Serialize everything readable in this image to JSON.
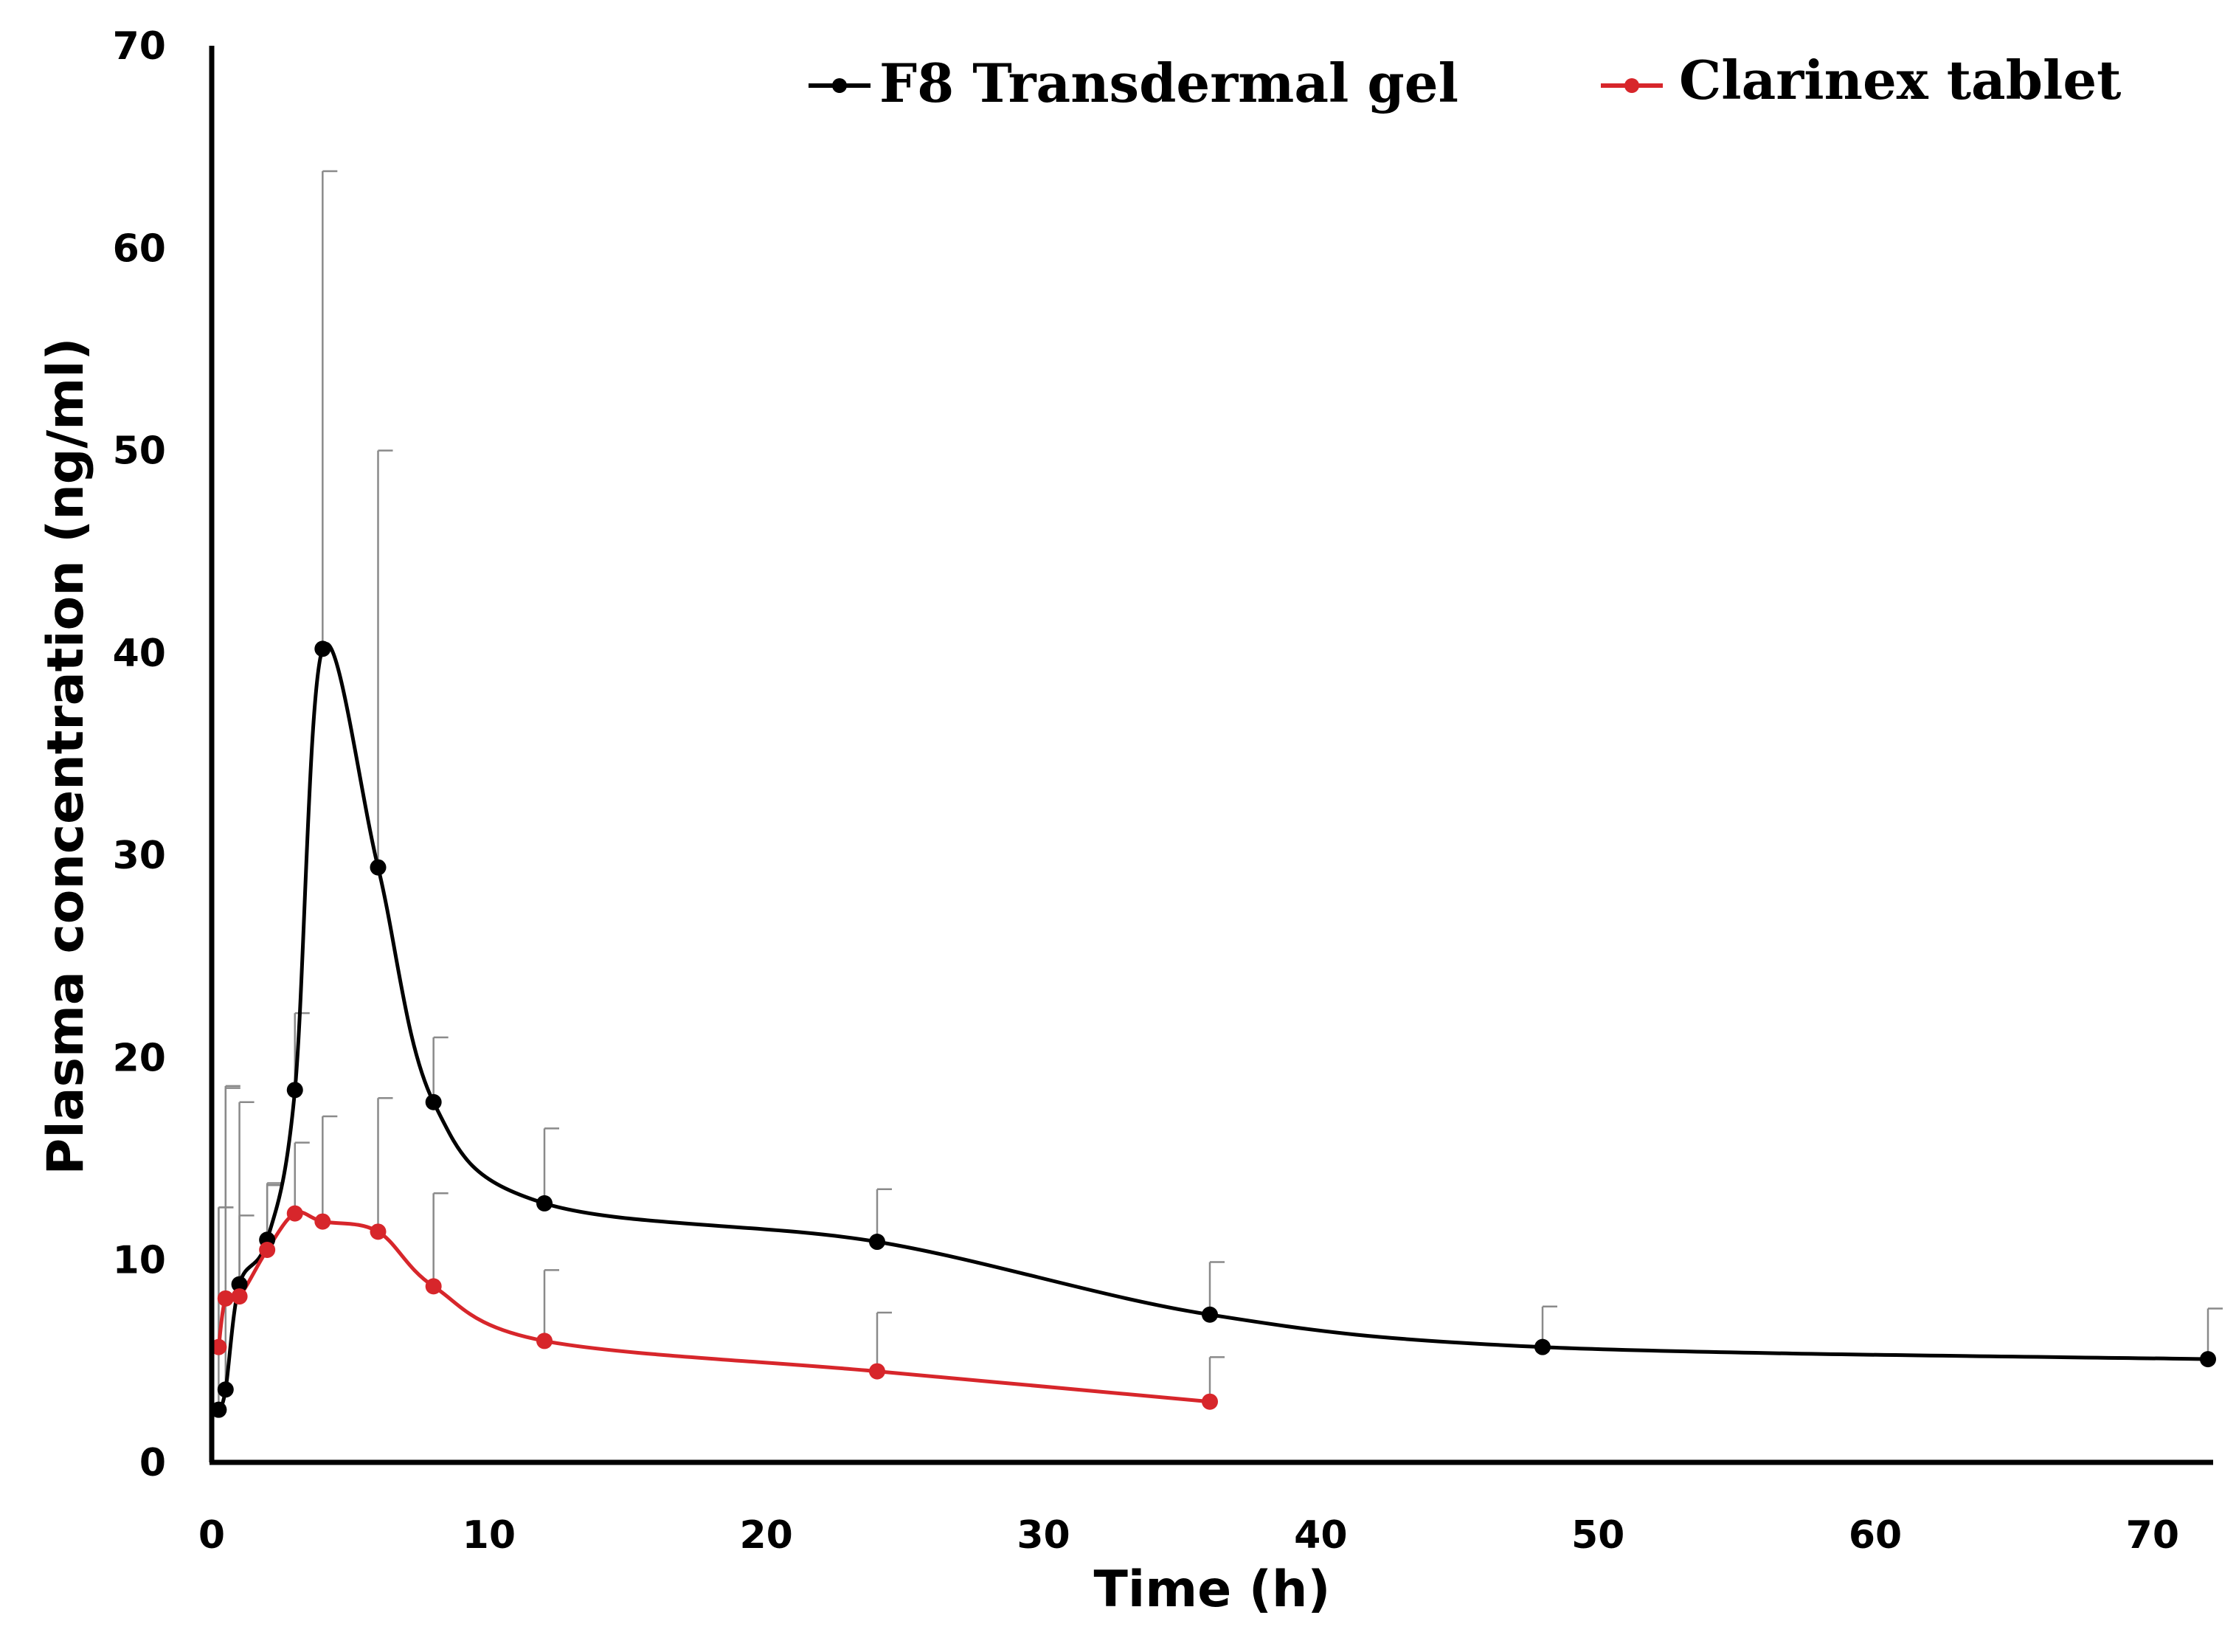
{
  "chart_data": {
    "type": "line",
    "title": "",
    "xlabel": "Time (h)",
    "ylabel": "Plasma concentration (ng/ml)",
    "xlim": [
      0,
      72
    ],
    "ylim": [
      0,
      70
    ],
    "xticks": [
      0,
      10,
      20,
      30,
      40,
      50,
      60,
      70
    ],
    "yticks": [
      0,
      10,
      20,
      30,
      40,
      50,
      60,
      70
    ],
    "grid": false,
    "legend_position": "top",
    "series": [
      {
        "name": "F8 Transdermal gel",
        "color": "#000000",
        "x": [
          0.25,
          0.5,
          1,
          2,
          3,
          4,
          6,
          8,
          12,
          24,
          36,
          48,
          72
        ],
        "y": [
          2.6,
          3.6,
          8.8,
          11.0,
          18.4,
          40.2,
          29.4,
          17.8,
          12.8,
          10.9,
          7.3,
          5.7,
          5.1
        ],
        "error": [
          10.0,
          15.0,
          9.0,
          2.8,
          3.8,
          23.6,
          20.6,
          3.2,
          3.7,
          2.6,
          2.6,
          2.0,
          2.5
        ]
      },
      {
        "name": "Clarinex tablet",
        "color": "#d7262b",
        "x": [
          0.25,
          0.5,
          1,
          2,
          3,
          4,
          6,
          8,
          12,
          24,
          36
        ],
        "y": [
          5.7,
          8.1,
          8.2,
          10.5,
          12.3,
          11.9,
          11.4,
          8.7,
          6.0,
          4.5,
          3.0
        ],
        "error": [
          6.9,
          10.4,
          4.0,
          3.2,
          3.5,
          5.2,
          6.6,
          4.6,
          3.5,
          2.9,
          2.2
        ]
      }
    ]
  }
}
